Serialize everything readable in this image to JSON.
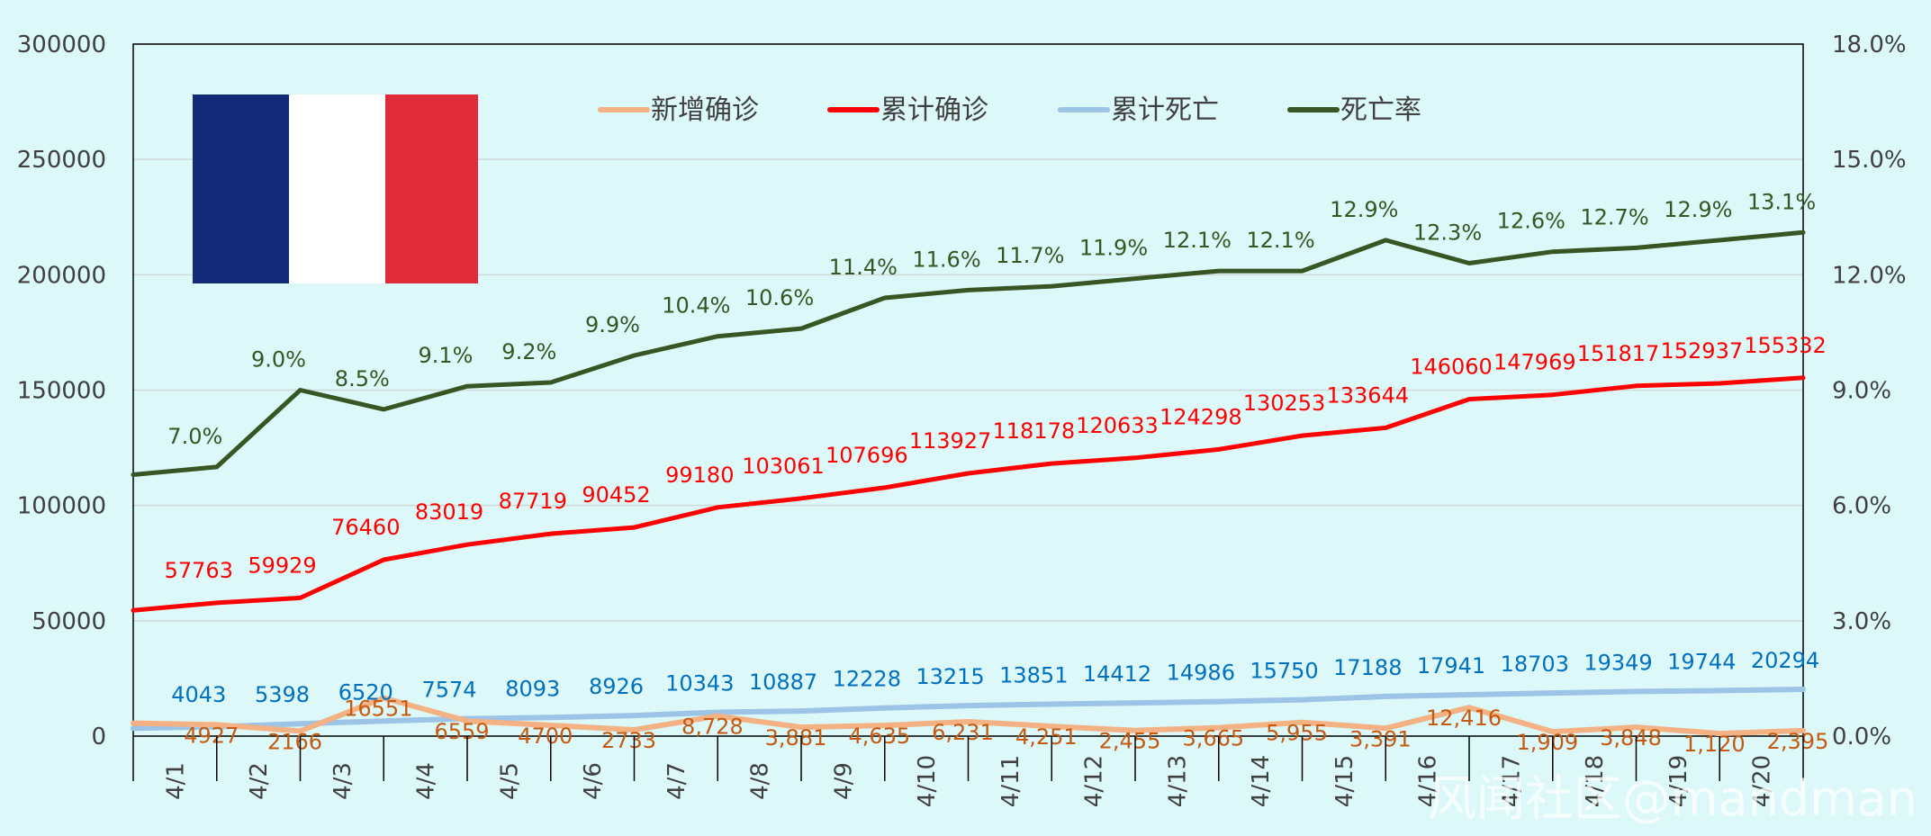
{
  "colors": {
    "background": "#dcf8f8",
    "new_cases": "#f4b183",
    "new_cases_label": "#c55a11",
    "cumulative_cases": "#ff0000",
    "cumulative_deaths": "#9dc3e6",
    "cumulative_deaths_label": "#0070c0",
    "death_rate": "#375623",
    "flag_blue": "#122a78",
    "flag_white": "#ffffff",
    "flag_red": "#e02b3b",
    "gridline": "#d0d8d8",
    "axis": "#000000"
  },
  "watermark": "风闻社区@mandman",
  "chart_data": {
    "type": "line",
    "categories": [
      "4/1",
      "4/2",
      "4/3",
      "4/4",
      "4/5",
      "4/6",
      "4/7",
      "4/8",
      "4/9",
      "4/10",
      "4/11",
      "4/12",
      "4/13",
      "4/14",
      "4/15",
      "4/16",
      "4/17",
      "4/18",
      "4/19",
      "4/20"
    ],
    "y_left": {
      "ylim": [
        0,
        300000
      ],
      "ticks": [
        "0",
        "50000",
        "100000",
        "150000",
        "200000",
        "250000",
        "300000"
      ]
    },
    "y_right": {
      "ylim": [
        0,
        0.18
      ],
      "ticks": [
        "0.0%",
        "3.0%",
        "6.0%",
        "9.0%",
        "12.0%",
        "15.0%",
        "18.0%"
      ]
    },
    "grid": true,
    "legend_position": "top-center",
    "series": [
      {
        "name": "新增确诊",
        "axis": "left",
        "start_value": 5600,
        "values": [
          4927,
          2166,
          16551,
          6559,
          4700,
          2733,
          8728,
          3881,
          4635,
          6231,
          4251,
          2455,
          3665,
          5955,
          3391,
          12416,
          1909,
          3848,
          1120,
          2395
        ],
        "labels": [
          "4927",
          "2166",
          "16551",
          "6559",
          "4700",
          "2733",
          "8,728",
          "3,881",
          "4,635",
          "6,231",
          "4,251",
          "2,455",
          "3,665",
          "5,955",
          "3,391",
          "12,416",
          "1,909",
          "3,848",
          "1,120",
          "2,395"
        ]
      },
      {
        "name": "累计确诊",
        "axis": "left",
        "start_value": 54500,
        "values": [
          57763,
          59929,
          76460,
          83019,
          87719,
          90452,
          99180,
          103061,
          107696,
          113927,
          118178,
          120633,
          124298,
          130253,
          133644,
          146060,
          147969,
          151817,
          152937,
          155332
        ],
        "labels": [
          "57763",
          "59929",
          "76460",
          "83019",
          "87719",
          "90452",
          "99180",
          "103061",
          "107696",
          "113927",
          "118178",
          "120633",
          "124298",
          "130253",
          "133644",
          "146060",
          "147969",
          "151817",
          "152937",
          "155332"
        ]
      },
      {
        "name": "累计死亡",
        "axis": "left",
        "start_value": 3400,
        "values": [
          4043,
          5398,
          6520,
          7574,
          8093,
          8926,
          10343,
          10887,
          12228,
          13215,
          13851,
          14412,
          14986,
          15750,
          17188,
          17941,
          18703,
          19349,
          19744,
          20294
        ],
        "labels": [
          "4043",
          "5398",
          "6520",
          "7574",
          "8093",
          "8926",
          "10343",
          "10887",
          "12228",
          "13215",
          "13851",
          "14412",
          "14986",
          "15750",
          "17188",
          "17941",
          "18703",
          "19349",
          "19744",
          "20294"
        ]
      },
      {
        "name": "死亡率",
        "axis": "right",
        "start_value": 0.068,
        "values": [
          0.07,
          0.09,
          0.085,
          0.091,
          0.092,
          0.099,
          0.104,
          0.106,
          0.114,
          0.116,
          0.117,
          0.119,
          0.121,
          0.121,
          0.129,
          0.123,
          0.126,
          0.127,
          0.129,
          0.131
        ],
        "labels": [
          "7.0%",
          "9.0%",
          "8.5%",
          "9.1%",
          "9.2%",
          "9.9%",
          "10.4%",
          "10.6%",
          "11.4%",
          "11.6%",
          "11.7%",
          "11.9%",
          "12.1%",
          "12.1%",
          "12.9%",
          "12.3%",
          "12.6%",
          "12.7%",
          "12.9%",
          "13.1%"
        ]
      }
    ]
  }
}
